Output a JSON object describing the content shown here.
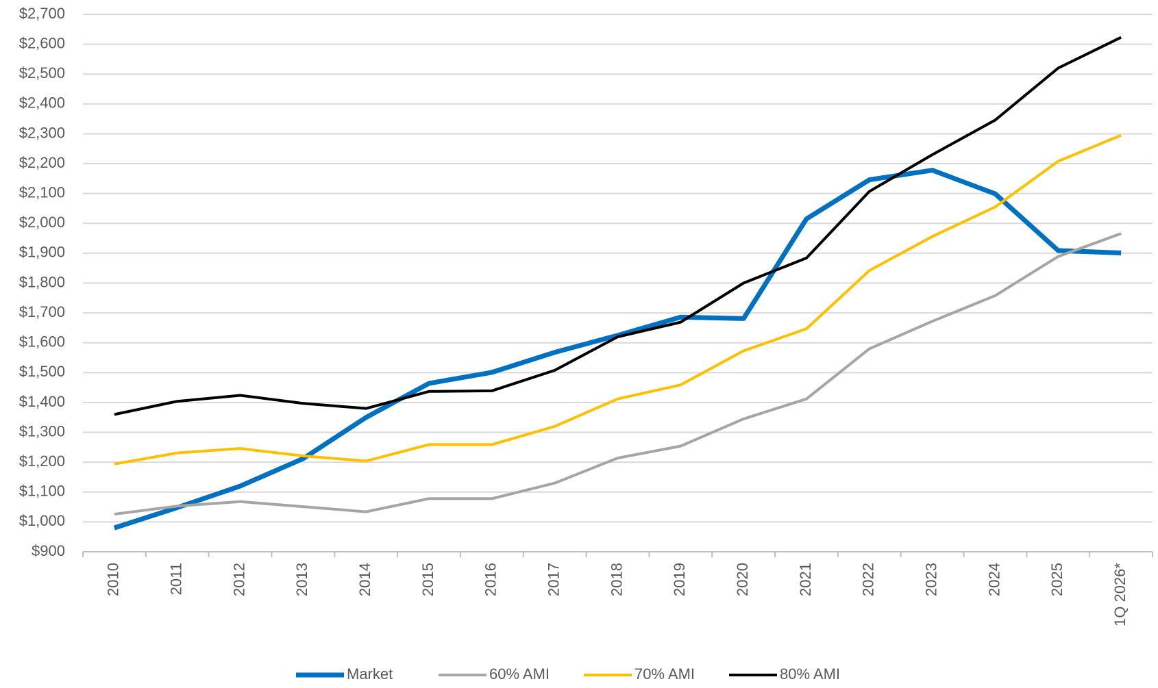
{
  "chart_data": {
    "type": "line",
    "categories": [
      "2010",
      "2011",
      "2012",
      "2013",
      "2014",
      "2015",
      "2016",
      "2017",
      "2018",
      "2019",
      "2020",
      "2021",
      "2022",
      "2023",
      "2024",
      "2025",
      "1Q 2026*"
    ],
    "series": [
      {
        "name": "Market",
        "color": "#0070c0",
        "values": [
          980,
          1048,
          1120,
          1212,
          1350,
          1464,
          1501,
          1568,
          1625,
          1686,
          1681,
          2015,
          2146,
          2178,
          2099,
          1909,
          1901
        ]
      },
      {
        "name": "60% AMI",
        "color": "#a5a5a5",
        "values": [
          1026,
          1053,
          1068,
          1051,
          1034,
          1078,
          1078,
          1130,
          1214,
          1254,
          1345,
          1412,
          1580,
          1672,
          1758,
          1889,
          1966
        ]
      },
      {
        "name": "70% AMI",
        "color": "#ffc000",
        "values": [
          1194,
          1231,
          1246,
          1221,
          1204,
          1259,
          1259,
          1320,
          1412,
          1459,
          1573,
          1647,
          1842,
          1956,
          2055,
          2208,
          2295
        ]
      },
      {
        "name": "80% AMI",
        "color": "#000000",
        "values": [
          1360,
          1404,
          1424,
          1397,
          1380,
          1437,
          1439,
          1508,
          1620,
          1669,
          1800,
          1884,
          2107,
          2230,
          2346,
          2520,
          2623
        ]
      }
    ],
    "ylim": [
      900,
      2700
    ],
    "yticks": [
      {
        "value": 900,
        "label": "$900"
      },
      {
        "value": 1000,
        "label": "$1,000"
      },
      {
        "value": 1100,
        "label": "$1,100"
      },
      {
        "value": 1200,
        "label": "$1,200"
      },
      {
        "value": 1300,
        "label": "$1,300"
      },
      {
        "value": 1400,
        "label": "$1,400"
      },
      {
        "value": 1500,
        "label": "$1,500"
      },
      {
        "value": 1600,
        "label": "$1,600"
      },
      {
        "value": 1700,
        "label": "$1,700"
      },
      {
        "value": 1800,
        "label": "$1,800"
      },
      {
        "value": 1900,
        "label": "$1,900"
      },
      {
        "value": 2000,
        "label": "$2,000"
      },
      {
        "value": 2100,
        "label": "$2,100"
      },
      {
        "value": 2200,
        "label": "$2,200"
      },
      {
        "value": 2300,
        "label": "$2,300"
      },
      {
        "value": 2400,
        "label": "$2,400"
      },
      {
        "value": 2500,
        "label": "$2,500"
      },
      {
        "value": 2600,
        "label": "$2,600"
      },
      {
        "value": 2700,
        "label": "$2,700"
      }
    ],
    "grid": true,
    "legend": "bottom"
  }
}
